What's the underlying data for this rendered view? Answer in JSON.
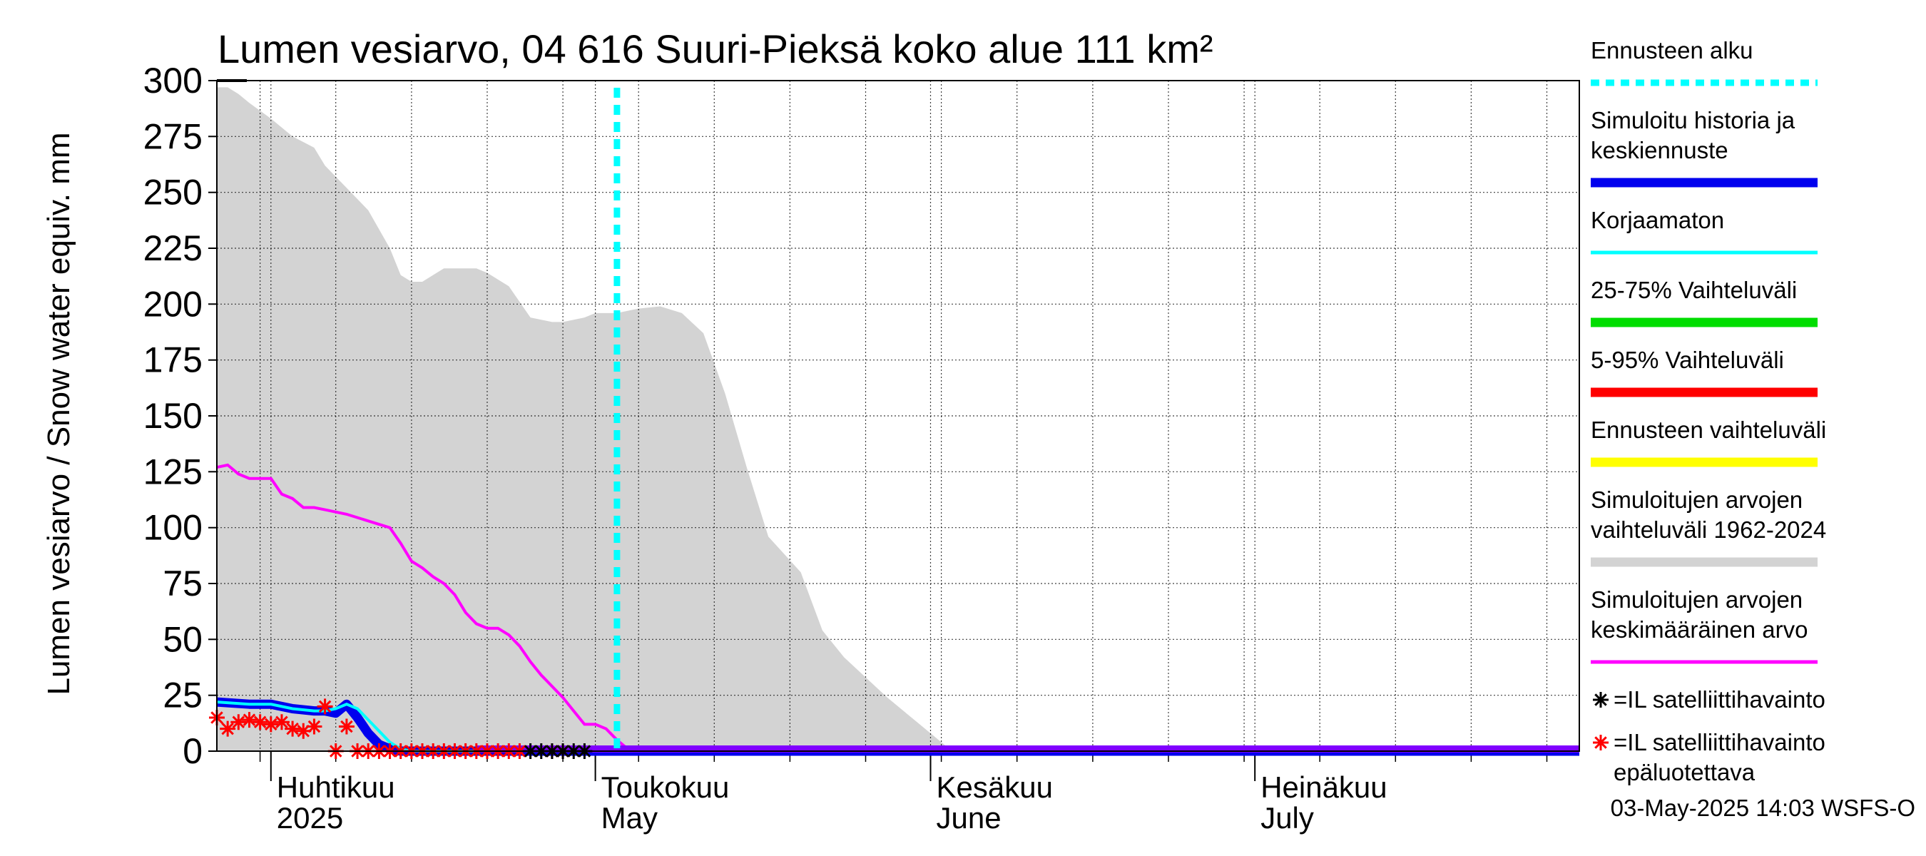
{
  "chart_data": {
    "type": "area",
    "title": "Lumen vesiarvo, 04 616 Suuri-Pieksä koko alue 111 km²",
    "ylabel": "Lumen vesiarvo / Snow water equiv.    mm",
    "ylim": [
      0,
      300
    ],
    "yticks": [
      "0",
      "25",
      "50",
      "75",
      "100",
      "125",
      "150",
      "175",
      "200",
      "225",
      "250",
      "275",
      "300"
    ],
    "xlim": [
      "2025-03-27",
      "2025-07-31"
    ],
    "x_month_labels": [
      {
        "date": "2025-04-01",
        "line1": "Huhtikuu",
        "line2": "2025"
      },
      {
        "date": "2025-05-01",
        "line1": "Toukokuu",
        "line2": "May"
      },
      {
        "date": "2025-06-01",
        "line1": "Kesäkuu",
        "line2": "June"
      },
      {
        "date": "2025-07-01",
        "line1": "Heinäkuu",
        "line2": "July"
      }
    ],
    "grid": true,
    "legend_position": "right",
    "forecast_start": "2025-05-03",
    "series": [
      {
        "name": "Simuloitujen arvojen vaihteluväli 1962-2024",
        "color": "#d3d3d3",
        "type": "area",
        "x": [
          "2025-03-27",
          "2025-03-28",
          "2025-03-29",
          "2025-03-30",
          "2025-04-01",
          "2025-04-03",
          "2025-04-05",
          "2025-04-06",
          "2025-04-08",
          "2025-04-10",
          "2025-04-12",
          "2025-04-13",
          "2025-04-14",
          "2025-04-15",
          "2025-04-17",
          "2025-04-19",
          "2025-04-20",
          "2025-04-21",
          "2025-04-23",
          "2025-04-25",
          "2025-04-27",
          "2025-04-28",
          "2025-04-30",
          "2025-05-01",
          "2025-05-03",
          "2025-05-05",
          "2025-05-07",
          "2025-05-09",
          "2025-05-11",
          "2025-05-13",
          "2025-05-15",
          "2025-05-17",
          "2025-05-20",
          "2025-05-22",
          "2025-05-24",
          "2025-05-28",
          "2025-05-31",
          "2025-06-03"
        ],
        "y": [
          297,
          297,
          294,
          290,
          283,
          275,
          270,
          262,
          252,
          242,
          225,
          213,
          210,
          210,
          216,
          216,
          216,
          214,
          208,
          194,
          192,
          192,
          194,
          196,
          196,
          198,
          199,
          196,
          187,
          160,
          127,
          96,
          80,
          54,
          42,
          24,
          12,
          0
        ]
      },
      {
        "name": "Simuloitujen arvojen keskimääräinen arvo",
        "color": "#ff00ff",
        "type": "line",
        "x": [
          "2025-03-27",
          "2025-03-28",
          "2025-03-29",
          "2025-03-30",
          "2025-04-01",
          "2025-04-02",
          "2025-04-03",
          "2025-04-04",
          "2025-04-05",
          "2025-04-06",
          "2025-04-08",
          "2025-04-10",
          "2025-04-12",
          "2025-04-13",
          "2025-04-14",
          "2025-04-15",
          "2025-04-16",
          "2025-04-17",
          "2025-04-18",
          "2025-04-19",
          "2025-04-20",
          "2025-04-21",
          "2025-04-22",
          "2025-04-23",
          "2025-04-24",
          "2025-04-25",
          "2025-04-26",
          "2025-04-27",
          "2025-04-28",
          "2025-04-29",
          "2025-04-30",
          "2025-05-01",
          "2025-05-02",
          "2025-05-03",
          "2025-05-04",
          "2025-05-05",
          "2025-05-06",
          "2025-05-10",
          "2025-05-20",
          "2025-06-10",
          "2025-07-31"
        ],
        "y": [
          127,
          128,
          124,
          122,
          122,
          115,
          113,
          109,
          109,
          108,
          106,
          103,
          100,
          93,
          85,
          82,
          78,
          75,
          70,
          62,
          57,
          55,
          55,
          52,
          47,
          40,
          34,
          29,
          24,
          18,
          12,
          12,
          10,
          5,
          1,
          0,
          0,
          0,
          0,
          0,
          0
        ]
      },
      {
        "name": "Korjaamaton",
        "color": "#00ffff",
        "type": "line",
        "x": [
          "2025-03-27",
          "2025-03-30",
          "2025-04-01",
          "2025-04-03",
          "2025-04-05",
          "2025-04-06",
          "2025-04-07",
          "2025-04-08",
          "2025-04-09",
          "2025-04-10",
          "2025-04-11",
          "2025-04-12",
          "2025-04-13",
          "2025-04-14",
          "2025-04-20",
          "2025-05-31",
          "2025-07-31"
        ],
        "y": [
          22,
          21,
          21,
          19,
          18,
          18,
          19,
          21,
          19,
          14,
          9,
          4,
          1,
          0,
          0,
          0,
          0
        ]
      },
      {
        "name": "Simuloitu historia ja keskiennuste",
        "color": "#0000ee",
        "type": "line",
        "x": [
          "2025-03-27",
          "2025-03-30",
          "2025-04-01",
          "2025-04-03",
          "2025-04-05",
          "2025-04-06",
          "2025-04-07",
          "2025-04-08",
          "2025-04-09",
          "2025-04-10",
          "2025-04-11",
          "2025-04-12",
          "2025-04-13",
          "2025-04-20",
          "2025-05-31",
          "2025-07-31"
        ],
        "y": [
          22,
          21,
          21,
          19,
          18,
          18,
          17,
          21,
          15,
          8,
          3,
          1,
          0,
          0,
          0,
          0
        ]
      },
      {
        "name": "25-75% Vaihteluväli",
        "color": "#00dd00",
        "type": "band",
        "x": [],
        "y": []
      },
      {
        "name": "5-95% Vaihteluväli",
        "color": "#ff0000",
        "type": "band",
        "x": [],
        "y": []
      },
      {
        "name": "Ennusteen vaihteluväli",
        "color": "#ffff00",
        "type": "band",
        "x": [],
        "y": []
      },
      {
        "name": "=IL satelliittihavainto",
        "color": "#000000",
        "type": "scatter",
        "x": [
          "2025-04-25",
          "2025-04-26",
          "2025-04-27",
          "2025-04-28",
          "2025-04-29",
          "2025-04-30"
        ],
        "y": [
          0,
          0,
          0,
          0,
          0,
          0
        ]
      },
      {
        "name": "=IL satelliittihavainto epäluotettava",
        "color": "#ff0000",
        "type": "scatter",
        "x": [
          "2025-03-27",
          "2025-03-28",
          "2025-03-29",
          "2025-03-30",
          "2025-03-31",
          "2025-04-01",
          "2025-04-02",
          "2025-04-03",
          "2025-04-04",
          "2025-04-05",
          "2025-04-06",
          "2025-04-07",
          "2025-04-08",
          "2025-04-09",
          "2025-04-10",
          "2025-04-11",
          "2025-04-12",
          "2025-04-13",
          "2025-04-14",
          "2025-04-15",
          "2025-04-16",
          "2025-04-17",
          "2025-04-18",
          "2025-04-19",
          "2025-04-20",
          "2025-04-21",
          "2025-04-22",
          "2025-04-23",
          "2025-04-24",
          "2025-04-27",
          "2025-04-28"
        ],
        "y": [
          15,
          10,
          13,
          14,
          13,
          12,
          13,
          10,
          9,
          11,
          20,
          0,
          11,
          0,
          0,
          0,
          0,
          0,
          0,
          0,
          0,
          0,
          0,
          0,
          0,
          0,
          0,
          0,
          0,
          0,
          0
        ]
      }
    ]
  },
  "legend": [
    {
      "key": "forecast",
      "lines": [
        "Ennusteen alku"
      ],
      "color": "#00ffff",
      "style": "dotted"
    },
    {
      "key": "sim",
      "lines": [
        "Simuloitu historia ja",
        "keskiennuste"
      ],
      "color": "#0000ee",
      "style": "thick"
    },
    {
      "key": "raw",
      "lines": [
        "Korjaamaton"
      ],
      "color": "#00ffff",
      "style": "thin"
    },
    {
      "key": "p2575",
      "lines": [
        "25-75% Vaihteluväli"
      ],
      "color": "#00dd00",
      "style": "thick"
    },
    {
      "key": "p595",
      "lines": [
        "5-95% Vaihteluväli"
      ],
      "color": "#ff0000",
      "style": "thick"
    },
    {
      "key": "fcrange",
      "lines": [
        "Ennusteen vaihteluväli"
      ],
      "color": "#ffff00",
      "style": "thick"
    },
    {
      "key": "histrange",
      "lines": [
        "Simuloitujen arvojen",
        "vaihteluväli 1962-2024"
      ],
      "color": "#d3d3d3",
      "style": "thick"
    },
    {
      "key": "histmean",
      "lines": [
        "Simuloitujen arvojen",
        "keskimääräinen arvo"
      ],
      "color": "#ff00ff",
      "style": "thin"
    },
    {
      "key": "sat",
      "lines": [
        "=IL satelliittihavainto"
      ],
      "color": "#000000",
      "style": "star"
    },
    {
      "key": "satbad",
      "lines": [
        "=IL satelliittihavainto",
        "epäluotettava"
      ],
      "color": "#ff0000",
      "style": "star"
    }
  ],
  "footer": "03-May-2025 14:03 WSFS-O"
}
